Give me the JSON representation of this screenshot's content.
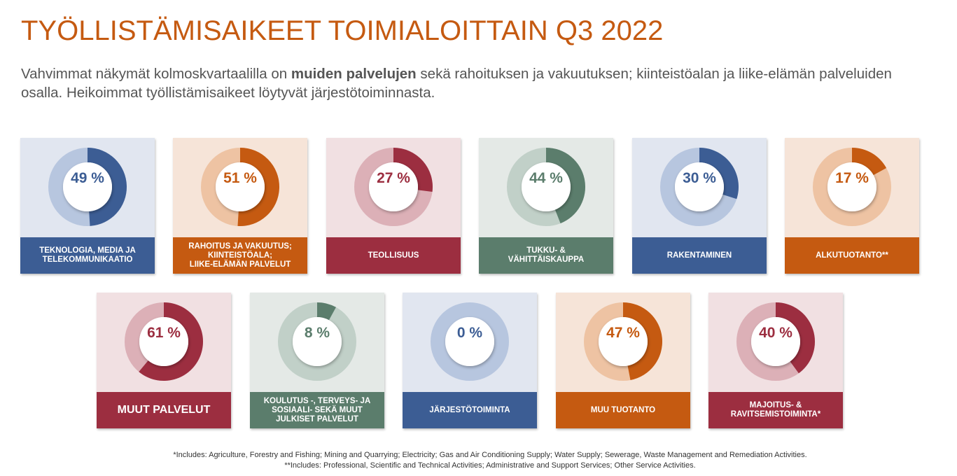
{
  "title": "TYÖLLISTÄMISAIKEET TOIMIALOITTAIN Q3 2022",
  "subtitle": {
    "part1": "Vahvimmat näkymät kolmoskvartaalilla on ",
    "bold": "muiden palvelujen",
    "part2": " sekä rahoituksen ja vakuutuksen; kiinteistöalan ja liike-elämän palveluiden osalla. Heikoimmat työllistämisaikeet löytyvät järjestötoiminnasta."
  },
  "colors": {
    "blue": {
      "dark": "#3c5d94",
      "light": "#b7c6df",
      "bg": "#e1e6f0"
    },
    "orange": {
      "dark": "#c55a11",
      "light": "#eec3a3",
      "bg": "#f6e4d8"
    },
    "red": {
      "dark": "#9c2e40",
      "light": "#dcb0b7",
      "bg": "#f1e0e2"
    },
    "green": {
      "dark": "#5b7d6c",
      "light": "#c1d0c8",
      "bg": "#e4e9e6"
    }
  },
  "chart_data": {
    "type": "donut",
    "unit": "%",
    "series": [
      {
        "pct_text": "49 %",
        "value": 49,
        "color": "blue",
        "label": "TEKNOLOGIA, MEDIA JA\nTELEKOMMUNIKAATIO"
      },
      {
        "pct_text": "51 %",
        "value": 51,
        "color": "orange",
        "label": "RAHOITUS JA VAKUUTUS;\nKIINTEISTÖALA;\nLIIKE-ELÄMÄN PALVELUT"
      },
      {
        "pct_text": "27 %",
        "value": 27,
        "color": "red",
        "label": "TEOLLISUUS"
      },
      {
        "pct_text": "44 %",
        "value": 44,
        "color": "green",
        "label": "TUKKU- &\nVÄHITTÄISKAUPPA"
      },
      {
        "pct_text": "30 %",
        "value": 30,
        "color": "blue",
        "label": "RAKENTAMINEN"
      },
      {
        "pct_text": "17 %",
        "value": 17,
        "color": "orange",
        "label": "ALKUTUOTANTO**"
      },
      {
        "pct_text": "61 %",
        "value": 61,
        "color": "red",
        "label": "MUUT PALVELUT"
      },
      {
        "pct_text": "8 %",
        "value": 8,
        "color": "green",
        "label": "KOULUTUS -, TERVEYS- JA\nSOSIAALI- SEKÄ MUUT\nJULKISET PALVELUT"
      },
      {
        "pct_text": "0 %",
        "value": 0,
        "color": "blue",
        "label": "JÄRJESTÖTOIMINTA"
      },
      {
        "pct_text": "47 %",
        "value": 47,
        "color": "orange",
        "label": "MUU TUOTANTO"
      },
      {
        "pct_text": "40 %",
        "value": 40,
        "color": "red",
        "label": "MAJOITUS- &\nRAVITSEMISTOIMINTA*"
      }
    ]
  },
  "footnotes": [
    "*Includes: Agriculture, Forestry and Fishing; Mining and Quarrying; Electricity; Gas and Air Conditioning Supply; Water Supply; Sewerage, Waste Management and Remediation Activities.",
    "**Includes: Professional, Scientific and Technical Activities; Administrative and Support Services; Other Service Activities."
  ]
}
